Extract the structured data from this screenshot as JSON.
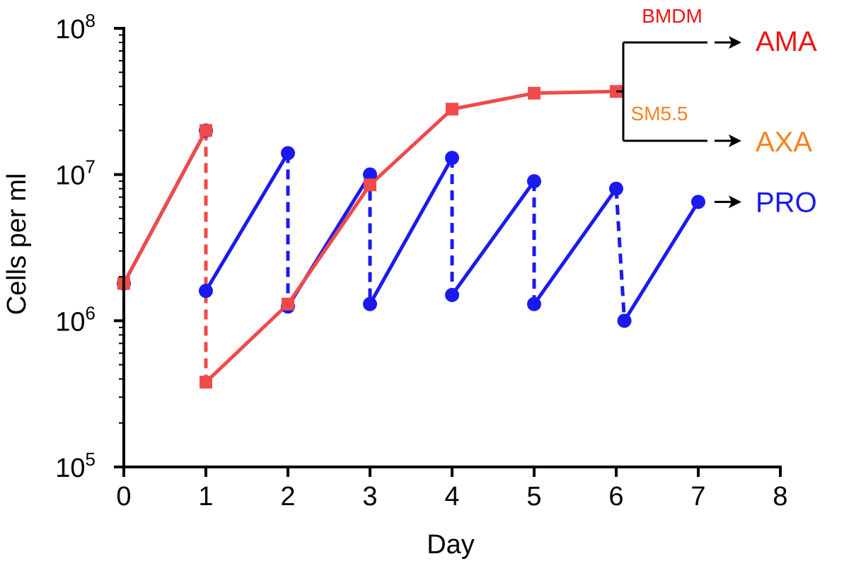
{
  "chart_data": {
    "type": "line",
    "xlabel": "Day",
    "ylabel": "Cells per ml",
    "xlim": [
      0,
      8
    ],
    "ylim": [
      100000,
      100000000
    ],
    "y_scale": "log",
    "x_ticks": [
      "0",
      "1",
      "2",
      "3",
      "4",
      "5",
      "6",
      "7",
      "8"
    ],
    "y_ticks": [
      {
        "value": 100000,
        "base": "10",
        "exp": "5"
      },
      {
        "value": 1000000,
        "base": "10",
        "exp": "6"
      },
      {
        "value": 10000000,
        "base": "10",
        "exp": "7"
      },
      {
        "value": 100000000,
        "base": "10",
        "exp": "8"
      }
    ],
    "grid": false,
    "series": [
      {
        "name": "AMA",
        "color": "#f04a4a",
        "marker": "square",
        "segments": [
          {
            "style": "solid",
            "points": [
              [
                0,
                1800000
              ],
              [
                1,
                20000000
              ]
            ]
          },
          {
            "style": "dashed",
            "points": [
              [
                1,
                20000000
              ],
              [
                1,
                380000
              ]
            ]
          },
          {
            "style": "solid",
            "points": [
              [
                1,
                380000
              ],
              [
                2,
                1300000
              ],
              [
                3,
                8500000
              ],
              [
                4,
                28000000
              ],
              [
                5,
                36000000
              ],
              [
                6,
                37000000
              ]
            ]
          }
        ]
      },
      {
        "name": "PRO",
        "color": "#1a1af0",
        "marker": "circle",
        "segments": [
          {
            "style": "solid",
            "points": [
              [
                0,
                1800000
              ],
              [
                1,
                20000000
              ]
            ]
          },
          {
            "style": "dashed",
            "points": [
              [
                1,
                20000000
              ],
              [
                1,
                1600000
              ]
            ]
          },
          {
            "style": "solid",
            "points": [
              [
                1,
                1600000
              ],
              [
                2,
                14000000
              ]
            ]
          },
          {
            "style": "dashed",
            "points": [
              [
                2,
                14000000
              ],
              [
                2,
                1250000
              ]
            ]
          },
          {
            "style": "solid",
            "points": [
              [
                2,
                1250000
              ],
              [
                3,
                10000000
              ]
            ]
          },
          {
            "style": "dashed",
            "points": [
              [
                3,
                10000000
              ],
              [
                3,
                1300000
              ]
            ]
          },
          {
            "style": "solid",
            "points": [
              [
                3,
                1300000
              ],
              [
                4,
                13000000
              ]
            ]
          },
          {
            "style": "dashed",
            "points": [
              [
                4,
                13000000
              ],
              [
                4,
                1500000
              ]
            ]
          },
          {
            "style": "solid",
            "points": [
              [
                4,
                1500000
              ],
              [
                5,
                9000000
              ]
            ]
          },
          {
            "style": "dashed",
            "points": [
              [
                5,
                9000000
              ],
              [
                5,
                1300000
              ]
            ]
          },
          {
            "style": "solid",
            "points": [
              [
                5,
                1300000
              ],
              [
                6,
                8000000
              ]
            ]
          },
          {
            "style": "dashed",
            "points": [
              [
                6,
                8000000
              ],
              [
                6.1,
                1000000
              ]
            ]
          },
          {
            "style": "solid",
            "points": [
              [
                6.1,
                1000000
              ],
              [
                7,
                6500000
              ]
            ]
          }
        ]
      }
    ],
    "annotations": {
      "branch_from": [
        6,
        37000000
      ],
      "upper_branch": {
        "y": 80000000,
        "label": "BMDM",
        "label_color": "#f01414",
        "target": "AMA",
        "target_color": "#f01414"
      },
      "lower_branch": {
        "y": 17000000,
        "label": "SM5.5",
        "label_color": "#f5821f",
        "target": "AXA",
        "target_color": "#f5821f"
      },
      "pro_end": {
        "from": [
          7,
          6500000
        ],
        "target": "PRO",
        "target_color": "#1a1af0"
      }
    }
  }
}
